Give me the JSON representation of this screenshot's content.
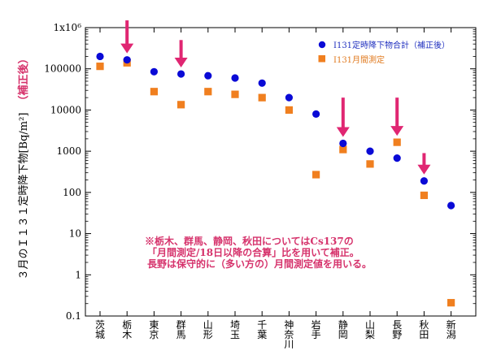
{
  "chart_data": {
    "type": "scatter",
    "ylabel": "３月のＩ１３１定時降下物[Bq/m²]",
    "ylabel_note": "（補正後）",
    "yscale": "log",
    "ylim": [
      0.1,
      1000000
    ],
    "ytick_labels": [
      "0.1",
      "1",
      "10",
      "100",
      "1000",
      "10000",
      "100000",
      "1x10⁶"
    ],
    "categories": [
      "茨城",
      "栃木",
      "東京",
      "群馬",
      "山形",
      "埼玉",
      "千葉",
      "神奈川",
      "岩手",
      "静岡",
      "山梨",
      "長野",
      "秋田",
      "新潟"
    ],
    "series": [
      {
        "name": "I131定時降下物合計（補正後）",
        "marker": "circle",
        "color": "#0a0ad6",
        "values": [
          200000,
          165000,
          85000,
          75000,
          68000,
          60000,
          45000,
          20000,
          8000,
          1550,
          1000,
          680,
          190,
          48
        ]
      },
      {
        "name": "I131月間測定",
        "marker": "square",
        "color": "#f07f1f",
        "values": [
          115000,
          140000,
          28000,
          13500,
          28000,
          24000,
          20000,
          10000,
          270,
          1100,
          490,
          1650,
          85,
          0.21
        ]
      }
    ],
    "legend_position": "top-right",
    "arrow_categories": [
      "栃木",
      "群馬",
      "静岡",
      "長野",
      "秋田"
    ],
    "arrow_color": "#e02672",
    "annotation": [
      "※栃木、群馬、静岡、秋田についてはCs137の",
      "「月間測定/18日以降の合算」比を用いて補正。",
      "長野は保守的に（多い方の）月間測定値を用いる。"
    ]
  }
}
